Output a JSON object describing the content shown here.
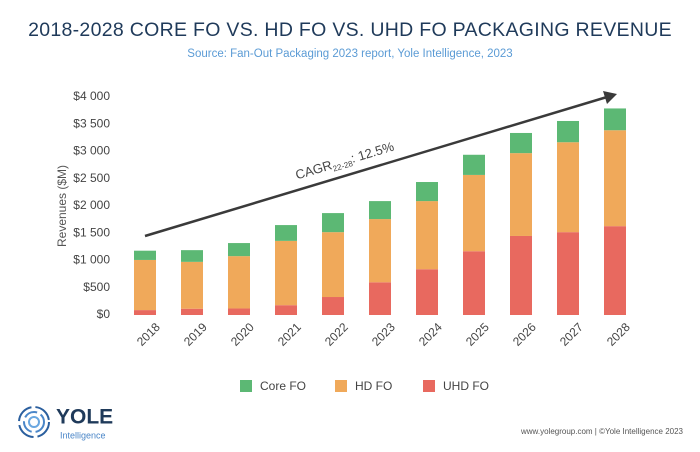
{
  "chart_data": {
    "type": "stacked-bar",
    "title": "2018-2028 CORE FO VS. HD FO VS. UHD FO PACKAGING REVENUE",
    "subtitle": "Source: Fan-Out Packaging 2023 report, Yole Intelligence, 2023",
    "y_label": "Revenues ($M)",
    "categories": [
      "2018",
      "2019",
      "2020",
      "2021",
      "2022",
      "2023",
      "2024",
      "2025",
      "2026",
      "2027",
      "2028"
    ],
    "series": [
      {
        "name": "Core FO",
        "color": "#5cb874",
        "values": [
          170,
          215,
          240,
          290,
          350,
          330,
          350,
          370,
          370,
          390,
          400
        ]
      },
      {
        "name": "HD FO",
        "color": "#f0a95a",
        "values": [
          920,
          860,
          960,
          1180,
          1190,
          1160,
          1250,
          1400,
          1520,
          1650,
          1760
        ]
      },
      {
        "name": "UHD FO",
        "color": "#e8695f",
        "values": [
          90,
          115,
          120,
          180,
          330,
          600,
          840,
          1170,
          1450,
          1520,
          1630
        ]
      }
    ],
    "ylim": [
      0,
      4000
    ],
    "yticks": [
      {
        "value": 0,
        "label": "$0"
      },
      {
        "value": 500,
        "label": "$500"
      },
      {
        "value": 1000,
        "label": "$1 000"
      },
      {
        "value": 1500,
        "label": "$1 500"
      },
      {
        "value": 2000,
        "label": "$2 000"
      },
      {
        "value": 2500,
        "label": "$2 500"
      },
      {
        "value": 3000,
        "label": "$3 000"
      },
      {
        "value": 3500,
        "label": "$3 500"
      },
      {
        "value": 4000,
        "label": "$4 000"
      }
    ],
    "annotation": {
      "text": "CAGR",
      "subscript": "22-28",
      "suffix": ": 12.5%"
    }
  },
  "footer": {
    "logo": "YOLE",
    "logo_sub": "Intelligence",
    "credit": "www.yolegroup.com | ©Yole Intelligence 2023"
  }
}
